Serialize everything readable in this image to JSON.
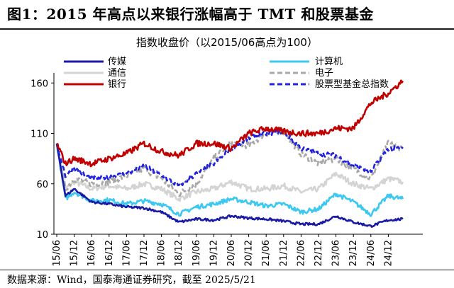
{
  "figure": {
    "title": "图1：2015 年高点以来银行涨幅高于 TMT 和股票基金",
    "subtitle": "指数收盘价（以2015/06高点为100）",
    "source": "数据来源：Wind，国泰海通证券研究，截至 2025/5/21"
  },
  "colors": {
    "传媒": "#1a1aa6",
    "计算机": "#3cc8f0",
    "通信": "#d4d4d4",
    "电子": "#a8a8a8",
    "银行": "#c00000",
    "股票型基金总指数": "#2222dd"
  },
  "chart_data": {
    "type": "line",
    "title": "指数收盘价（以2015/06高点为100）",
    "xlabel": "",
    "ylabel": "",
    "ylim": [
      10,
      170
    ],
    "yticks": [
      10,
      60,
      110,
      160
    ],
    "xticks": [
      "15/06",
      "15/12",
      "16/06",
      "16/12",
      "17/06",
      "17/12",
      "18/06",
      "18/12",
      "19/06",
      "19/12",
      "20/06",
      "20/12",
      "21/06",
      "21/12",
      "22/06",
      "22/12",
      "23/06",
      "23/12",
      "24/06",
      "24/12"
    ],
    "grid": false,
    "legend": "top, two columns",
    "series": [
      {
        "name": "传媒",
        "style": "solid",
        "x": [
          "15/06",
          "15/09",
          "15/12",
          "16/06",
          "16/12",
          "17/06",
          "17/12",
          "18/06",
          "18/12",
          "19/06",
          "19/12",
          "20/06",
          "20/12",
          "21/06",
          "21/12",
          "22/06",
          "22/12",
          "23/06",
          "23/12",
          "24/06",
          "24/12",
          "25/05"
        ],
        "values": [
          100,
          48,
          55,
          42,
          40,
          37,
          36,
          32,
          22,
          25,
          24,
          28,
          26,
          25,
          23,
          20,
          20,
          28,
          22,
          18,
          24,
          25
        ]
      },
      {
        "name": "计算机",
        "style": "solid",
        "x": [
          "15/06",
          "15/09",
          "15/12",
          "16/06",
          "16/12",
          "17/06",
          "17/12",
          "18/06",
          "18/12",
          "19/06",
          "19/12",
          "20/06",
          "20/12",
          "21/06",
          "21/12",
          "22/06",
          "22/12",
          "23/06",
          "23/12",
          "24/06",
          "24/12",
          "25/05"
        ],
        "values": [
          100,
          45,
          52,
          43,
          44,
          40,
          43,
          40,
          30,
          37,
          40,
          45,
          42,
          38,
          40,
          32,
          35,
          50,
          42,
          30,
          48,
          45
        ]
      },
      {
        "name": "通信",
        "style": "solid",
        "x": [
          "15/06",
          "15/09",
          "15/12",
          "16/06",
          "16/12",
          "17/06",
          "17/12",
          "18/06",
          "18/12",
          "19/06",
          "19/12",
          "20/06",
          "20/12",
          "21/06",
          "21/12",
          "22/06",
          "22/12",
          "23/06",
          "23/12",
          "24/06",
          "24/12",
          "25/05"
        ],
        "values": [
          100,
          55,
          62,
          55,
          58,
          55,
          60,
          55,
          45,
          52,
          55,
          62,
          55,
          55,
          58,
          52,
          55,
          70,
          60,
          55,
          65,
          62
        ]
      },
      {
        "name": "电子",
        "style": "dashed",
        "x": [
          "15/06",
          "15/09",
          "15/12",
          "16/06",
          "16/12",
          "17/06",
          "17/12",
          "18/06",
          "18/12",
          "19/06",
          "19/12",
          "20/06",
          "20/12",
          "21/06",
          "21/12",
          "22/06",
          "22/12",
          "23/06",
          "23/12",
          "24/06",
          "24/12",
          "25/05"
        ],
        "values": [
          100,
          55,
          65,
          60,
          62,
          68,
          75,
          65,
          50,
          60,
          85,
          100,
          98,
          110,
          112,
          90,
          80,
          85,
          75,
          65,
          100,
          95
        ]
      },
      {
        "name": "银行",
        "style": "solid",
        "x": [
          "15/06",
          "15/09",
          "15/12",
          "16/06",
          "16/12",
          "17/06",
          "17/12",
          "18/06",
          "18/12",
          "19/06",
          "19/12",
          "20/06",
          "20/12",
          "21/06",
          "21/12",
          "22/06",
          "22/12",
          "23/06",
          "23/12",
          "24/06",
          "24/12",
          "25/05"
        ],
        "values": [
          100,
          80,
          85,
          80,
          85,
          90,
          100,
          92,
          88,
          100,
          100,
          95,
          110,
          115,
          112,
          110,
          110,
          115,
          115,
          140,
          150,
          162
        ]
      },
      {
        "name": "股票型基金总指数",
        "style": "dashed",
        "x": [
          "15/06",
          "15/09",
          "15/12",
          "16/06",
          "16/12",
          "17/06",
          "17/12",
          "18/06",
          "18/12",
          "19/06",
          "19/12",
          "20/06",
          "20/12",
          "21/06",
          "21/12",
          "22/06",
          "22/12",
          "23/06",
          "23/12",
          "24/06",
          "24/12",
          "25/05"
        ],
        "values": [
          100,
          68,
          75,
          65,
          67,
          70,
          78,
          68,
          58,
          70,
          80,
          95,
          105,
          110,
          112,
          95,
          90,
          88,
          78,
          72,
          95,
          95
        ]
      }
    ]
  }
}
